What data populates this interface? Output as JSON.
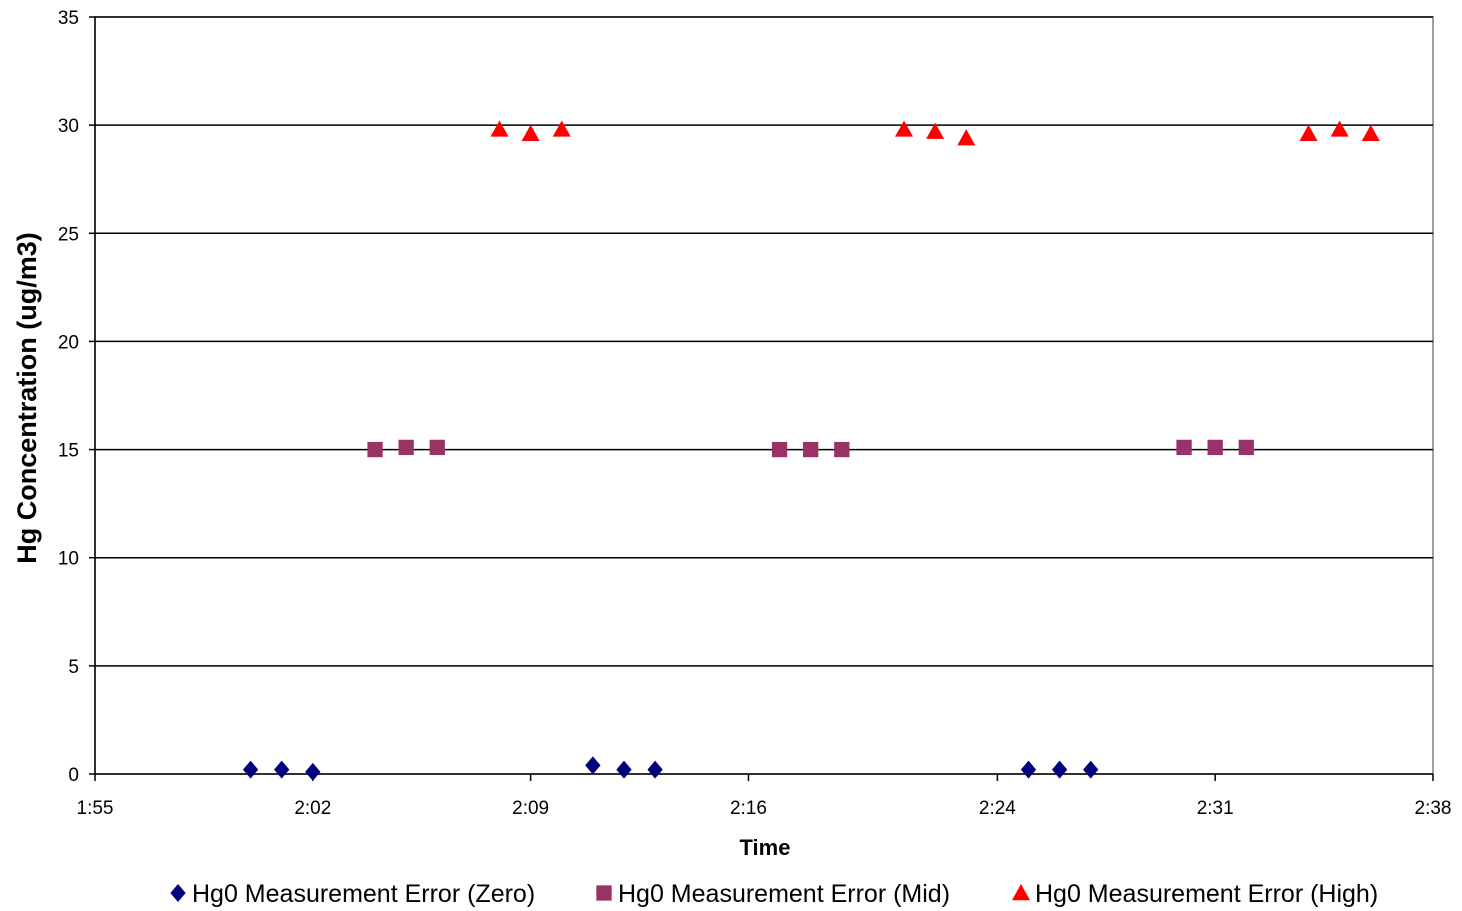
{
  "chart_data": {
    "type": "scatter",
    "title": "",
    "xlabel": "Time",
    "ylabel": "Hg Concentration (ug/m3)",
    "xlim": [
      "1:55",
      "2:38"
    ],
    "ylim": [
      0,
      35
    ],
    "x_ticks": [
      "1:55",
      "2:02",
      "2:09",
      "2:16",
      "2:24",
      "2:31",
      "2:38"
    ],
    "y_ticks": [
      0,
      5,
      10,
      15,
      20,
      25,
      30,
      35
    ],
    "grid": "horizontal",
    "legend_position": "bottom",
    "series": [
      {
        "name": "Hg0 Measurement Error (Zero)",
        "marker": "diamond",
        "color": "#00007f",
        "points": [
          {
            "x": "2:00",
            "y": 0.2
          },
          {
            "x": "2:01",
            "y": 0.2
          },
          {
            "x": "2:02",
            "y": 0.1
          },
          {
            "x": "2:11",
            "y": 0.4
          },
          {
            "x": "2:12",
            "y": 0.2
          },
          {
            "x": "2:13",
            "y": 0.2
          },
          {
            "x": "2:25",
            "y": 0.2
          },
          {
            "x": "2:26",
            "y": 0.2
          },
          {
            "x": "2:27",
            "y": 0.2
          }
        ]
      },
      {
        "name": "Hg0 Measurement Error (Mid)",
        "marker": "square",
        "color": "#993366",
        "points": [
          {
            "x": "2:04",
            "y": 15.0
          },
          {
            "x": "2:05",
            "y": 15.1
          },
          {
            "x": "2:06",
            "y": 15.1
          },
          {
            "x": "2:17",
            "y": 15.0
          },
          {
            "x": "2:18",
            "y": 15.0
          },
          {
            "x": "2:19",
            "y": 15.0
          },
          {
            "x": "2:30",
            "y": 15.1
          },
          {
            "x": "2:31",
            "y": 15.1
          },
          {
            "x": "2:32",
            "y": 15.1
          }
        ]
      },
      {
        "name": "Hg0 Measurement Error (High)",
        "marker": "triangle",
        "color": "#ff0000",
        "points": [
          {
            "x": "2:08",
            "y": 29.8
          },
          {
            "x": "2:09",
            "y": 29.6
          },
          {
            "x": "2:10",
            "y": 29.8
          },
          {
            "x": "2:21",
            "y": 29.8
          },
          {
            "x": "2:22",
            "y": 29.7
          },
          {
            "x": "2:23",
            "y": 29.4
          },
          {
            "x": "2:34",
            "y": 29.6
          },
          {
            "x": "2:35",
            "y": 29.8
          },
          {
            "x": "2:36",
            "y": 29.6
          }
        ]
      }
    ]
  }
}
